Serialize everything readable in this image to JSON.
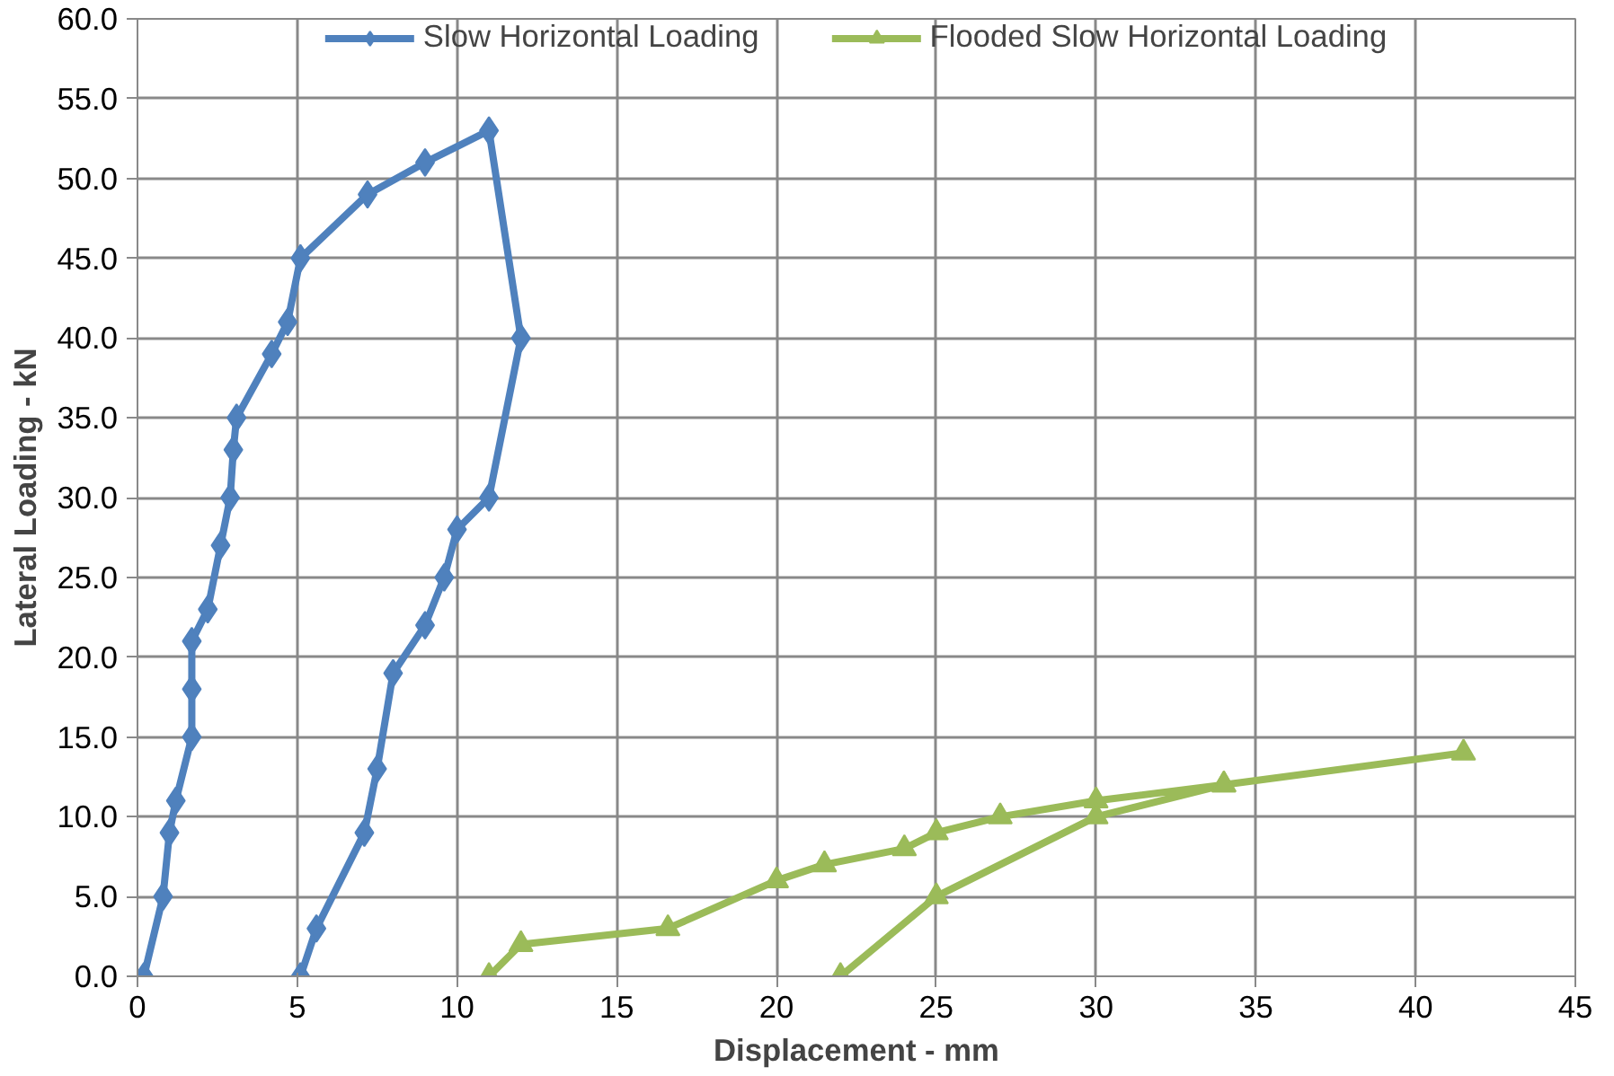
{
  "chart_data": {
    "type": "line",
    "xlabel": "Displacement - mm",
    "ylabel": "Lateral Loading - kN",
    "xlim": [
      0,
      45
    ],
    "xticks": [
      0,
      5,
      10,
      15,
      20,
      25,
      30,
      35,
      40,
      45
    ],
    "ylim": [
      0,
      60
    ],
    "yticks": [
      {
        "value": 0,
        "label": "0.0"
      },
      {
        "value": 5,
        "label": "5.0"
      },
      {
        "value": 10,
        "label": "10.0"
      },
      {
        "value": 15,
        "label": "15.0"
      },
      {
        "value": 20,
        "label": "20.0"
      },
      {
        "value": 25,
        "label": "25.0"
      },
      {
        "value": 30,
        "label": "30.0"
      },
      {
        "value": 35,
        "label": "35.0"
      },
      {
        "value": 40,
        "label": "40.0"
      },
      {
        "value": 45,
        "label": "45.0"
      },
      {
        "value": 50,
        "label": "50.0"
      },
      {
        "value": 55,
        "label": "55.0"
      },
      {
        "value": 60,
        "label": "60.0"
      }
    ],
    "grid": true,
    "legend": "top",
    "series": [
      {
        "name": "Slow Horizontal Loading",
        "color": "#4f81bd",
        "marker": "diamond",
        "x": [
          0.2,
          0.8,
          1,
          1.2,
          1.7,
          1.7,
          1.7,
          2.2,
          2.6,
          2.9,
          3,
          3.1,
          4.2,
          4.7,
          5.1,
          7.2,
          9,
          11,
          12,
          11,
          10,
          9.6,
          9,
          8,
          7.5,
          7.1,
          5.6,
          5.1
        ],
        "values": [
          0,
          5,
          9,
          11,
          15,
          18,
          21,
          23,
          27,
          30,
          33,
          35,
          39,
          41,
          45,
          49,
          51,
          53,
          40,
          30,
          28,
          25,
          22,
          19,
          13,
          9,
          3,
          0
        ]
      },
      {
        "name": "Flooded Slow Horizontal Loading",
        "color": "#9bbb59",
        "marker": "triangle",
        "x": [
          11,
          12,
          16.6,
          20,
          21.5,
          24,
          25,
          27,
          30,
          34,
          41.5,
          34,
          30,
          25,
          22
        ],
        "values": [
          0,
          2,
          3,
          6,
          7,
          8,
          9,
          10,
          11,
          12,
          14,
          12,
          10,
          5,
          0
        ]
      }
    ]
  }
}
